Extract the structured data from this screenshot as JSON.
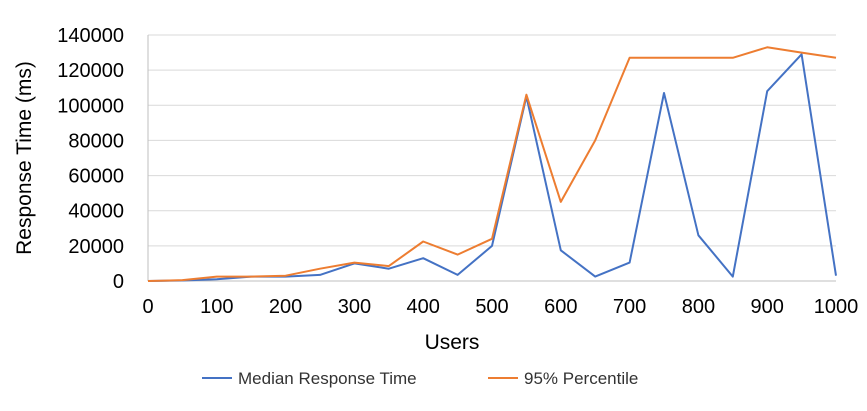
{
  "chart_data": {
    "type": "line",
    "title": "",
    "xlabel": "Users",
    "ylabel": "Response Time (ms)",
    "xlim": [
      0,
      1000
    ],
    "ylim": [
      0,
      140000
    ],
    "x_ticks": [
      0,
      100,
      200,
      300,
      400,
      500,
      600,
      700,
      800,
      900,
      1000
    ],
    "y_ticks": [
      0,
      20000,
      40000,
      60000,
      80000,
      100000,
      120000,
      140000
    ],
    "grid": "horizontal",
    "legend_position": "bottom",
    "x": [
      0,
      25,
      50,
      100,
      150,
      200,
      250,
      300,
      350,
      400,
      450,
      500,
      550,
      600,
      650,
      700,
      750,
      800,
      850,
      900,
      950,
      1000
    ],
    "series": [
      {
        "name": "Median Response Time",
        "color": "#4472C4",
        "values": [
          0,
          100,
          300,
          1000,
          2500,
          2500,
          3500,
          10000,
          7000,
          13000,
          3500,
          20000,
          105000,
          17500,
          2500,
          10500,
          107000,
          26000,
          2500,
          108000,
          129000,
          3000
        ]
      },
      {
        "name": "95% Percentile",
        "color": "#ED7D31",
        "values": [
          0,
          200,
          500,
          2500,
          2500,
          3000,
          7000,
          10500,
          8500,
          22500,
          15000,
          24000,
          106000,
          45000,
          80000,
          127000,
          127000,
          127000,
          127000,
          133000,
          130000,
          127000
        ]
      }
    ]
  }
}
